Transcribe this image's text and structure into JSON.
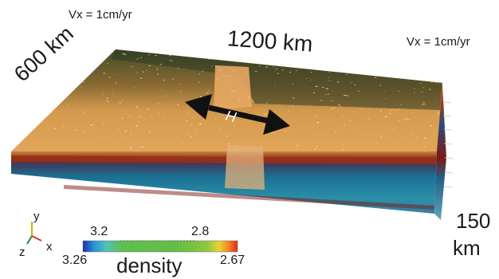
{
  "labels": {
    "vx_left": "Vx = 1cm/yr",
    "vx_right": "Vx = 1cm/yr",
    "length": "1200 km",
    "width": "600 km",
    "depth_value": "150",
    "depth_unit": "km",
    "arrow_symbol": "H"
  },
  "axes": {
    "y": "y",
    "x": "x",
    "z": "z"
  },
  "colorbar": {
    "title": "density",
    "upper_left": "3.2",
    "upper_right": "2.8",
    "lower_left": "3.26",
    "lower_right": "2.67",
    "gradient_colors": [
      "#1b2fa8",
      "#2a8fd8",
      "#4fc3b8",
      "#5fbf4f",
      "#63bd44",
      "#8cc63f",
      "#e8d23a",
      "#f28a23",
      "#e2261c"
    ]
  }
}
